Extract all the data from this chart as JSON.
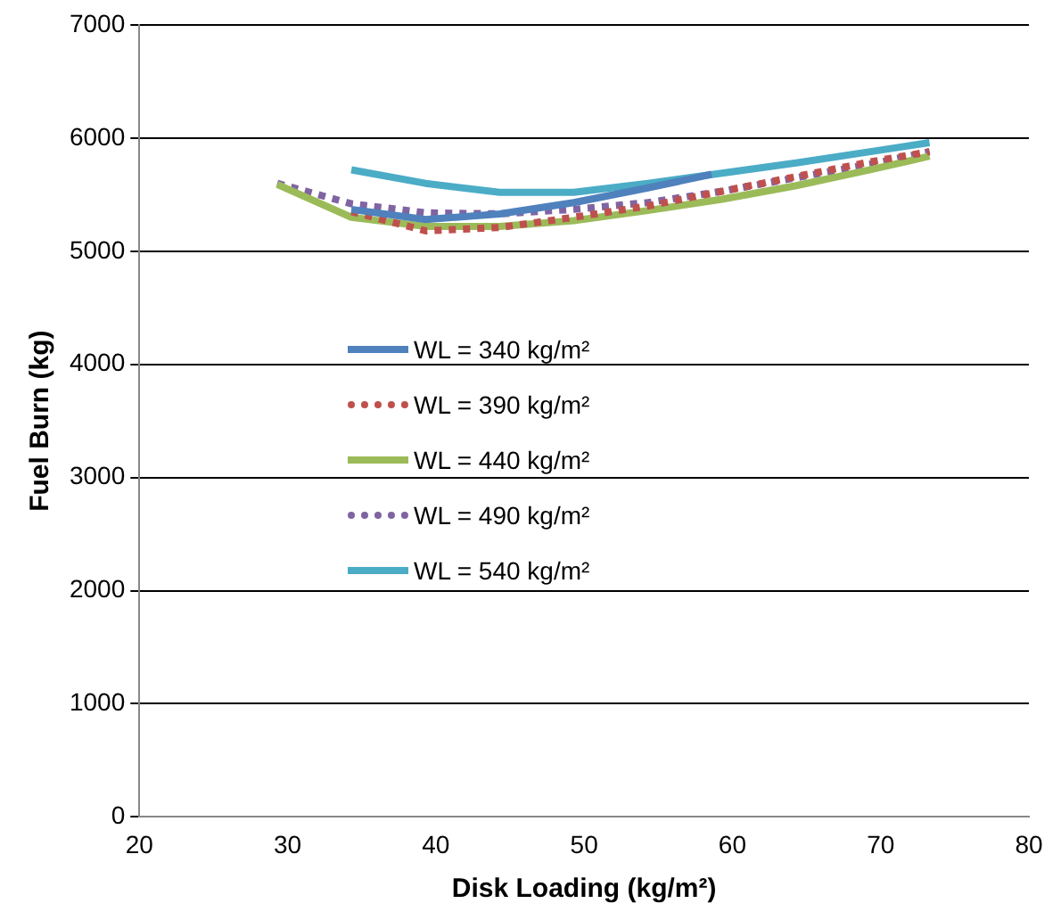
{
  "chart_data": {
    "type": "line",
    "xlabel": "Disk Loading (kg/m²)",
    "ylabel": "Fuel Burn (kg)",
    "xlim": [
      20,
      80
    ],
    "xticks": [
      20,
      30,
      40,
      50,
      60,
      70,
      80
    ],
    "ylim": [
      0,
      7000
    ],
    "yticks": [
      0,
      1000,
      2000,
      3000,
      4000,
      5000,
      6000,
      7000
    ],
    "grid": "y",
    "legend": "left",
    "marker": "none",
    "series": [
      {
        "name": "WL = 340 kg/m²",
        "color": "#4f81bd",
        "line_style": "solid",
        "x": [
          34.3,
          39.3,
          44.3,
          49.3,
          54.3,
          58.6
        ],
        "values": [
          5370,
          5280,
          5330,
          5430,
          5560,
          5680
        ]
      },
      {
        "name": "WL = 390 kg/m²",
        "color": "#c0504d",
        "line_style": "dotted",
        "x": [
          34.3,
          39.3,
          44.3,
          49.3,
          54.3,
          59.3,
          64.3,
          69.3,
          73.3
        ],
        "values": [
          5350,
          5180,
          5210,
          5300,
          5400,
          5530,
          5660,
          5790,
          5880
        ]
      },
      {
        "name": "WL = 440 kg/m²",
        "color": "#9bbb59",
        "line_style": "solid",
        "x": [
          29.3,
          34.3,
          39.3,
          44.3,
          49.3,
          54.3,
          59.3,
          64.3,
          69.3,
          73.3
        ],
        "values": [
          5590,
          5300,
          5220,
          5220,
          5270,
          5360,
          5460,
          5580,
          5720,
          5840
        ]
      },
      {
        "name": "WL = 490 kg/m²",
        "color": "#8064a2",
        "line_style": "dotted",
        "x": [
          29.3,
          34.3,
          39.3,
          44.3,
          49.3,
          54.3,
          59.3,
          64.3,
          69.3,
          73.3
        ],
        "values": [
          5600,
          5420,
          5340,
          5330,
          5370,
          5430,
          5530,
          5650,
          5770,
          5880
        ]
      },
      {
        "name": "WL = 540 kg/m²",
        "color": "#4bacc6",
        "line_style": "solid",
        "x": [
          34.3,
          39.3,
          44.3,
          49.3,
          54.3,
          59.3,
          64.3,
          69.3,
          73.3
        ],
        "values": [
          5720,
          5600,
          5520,
          5520,
          5600,
          5690,
          5780,
          5880,
          5960
        ]
      }
    ]
  }
}
